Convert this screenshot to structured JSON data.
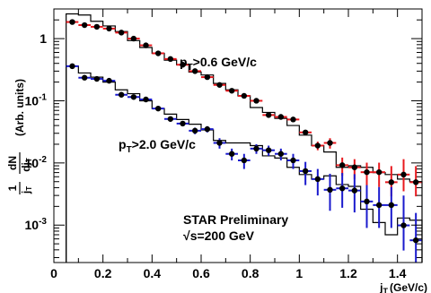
{
  "chart_data": {
    "type": "scatter",
    "title": "",
    "xlabel": "j_T (GeV/c)",
    "xlabel_main": "j",
    "xlabel_sub": "T",
    "xlabel_unit": "(GeV/c)",
    "ylabel": "(1/j_T) dN/dj_T (Arb. units)",
    "ylabel_frac1_num": "1",
    "ylabel_frac1_den": "j",
    "ylabel_frac1_den_sub": "T",
    "ylabel_frac2_num": "dN",
    "ylabel_frac2_den": "dj",
    "ylabel_frac2_den_sub": "T",
    "ylabel_units": "(Arb. units)",
    "xlim": [
      0,
      1.5
    ],
    "ylim": [
      0.00025,
      3
    ],
    "yscale": "log",
    "grid": false,
    "x_ticks": [
      {
        "value": 0,
        "label": "0"
      },
      {
        "value": 0.2,
        "label": "0.2"
      },
      {
        "value": 0.4,
        "label": "0.4"
      },
      {
        "value": 0.6,
        "label": "0.6"
      },
      {
        "value": 0.8,
        "label": "0.8"
      },
      {
        "value": 1.0,
        "label": "1"
      },
      {
        "value": 1.2,
        "label": "1.2"
      },
      {
        "value": 1.4,
        "label": "1.4"
      }
    ],
    "y_ticks": [
      {
        "value": 1,
        "label": "1",
        "base": "",
        "exp": ""
      },
      {
        "value": 0.1,
        "label": "",
        "base": "10",
        "exp": "-1"
      },
      {
        "value": 0.01,
        "label": "",
        "base": "10",
        "exp": "-2"
      },
      {
        "value": 0.001,
        "label": "",
        "base": "10",
        "exp": "-3"
      }
    ],
    "annotations": {
      "high_pt": {
        "p": "p",
        "sub": "T",
        "rest": ">0.6 GeV/c"
      },
      "low_pt": {
        "p": "p",
        "sub": "T",
        "rest": ">2.0 GeV/c"
      },
      "prelim": "STAR Preliminary",
      "energy_sqrt": "√",
      "energy_rest": "s=200 GeV"
    },
    "bin_width": 0.05,
    "series": [
      {
        "key": "data_high",
        "color": "#e8191e",
        "x": [
          0.075,
          0.125,
          0.175,
          0.225,
          0.275,
          0.325,
          0.375,
          0.425,
          0.475,
          0.525,
          0.575,
          0.625,
          0.675,
          0.725,
          0.775,
          0.825,
          0.875,
          0.925,
          0.975,
          1.025,
          1.075,
          1.125,
          1.175,
          1.225,
          1.275,
          1.325,
          1.375,
          1.425,
          1.475
        ],
        "y": [
          1.85,
          1.65,
          1.55,
          1.45,
          1.25,
          1.0,
          0.78,
          0.58,
          0.47,
          0.38,
          0.3,
          0.24,
          0.18,
          0.145,
          0.12,
          0.1,
          0.059,
          0.055,
          0.05,
          0.031,
          0.019,
          0.021,
          0.0092,
          0.0085,
          0.0071,
          0.0071,
          0.0049,
          0.0065,
          0.0049
        ],
        "yerr_lo": [
          0.05,
          0.05,
          0.05,
          0.05,
          0.05,
          0.04,
          0.03,
          0.02,
          0.02,
          0.015,
          0.012,
          0.01,
          0.008,
          0.006,
          0.005,
          0.004,
          0.003,
          0.003,
          0.003,
          0.003,
          0.003,
          0.004,
          0.003,
          0.003,
          0.003,
          0.003,
          0.002,
          0.003,
          0.002
        ],
        "yerr_hi": [
          0.05,
          0.05,
          0.05,
          0.05,
          0.05,
          0.04,
          0.03,
          0.02,
          0.02,
          0.015,
          0.012,
          0.01,
          0.008,
          0.006,
          0.005,
          0.004,
          0.003,
          0.003,
          0.003,
          0.003,
          0.003,
          0.004,
          0.003,
          0.003,
          0.003,
          0.003,
          0.004,
          0.005,
          0.004
        ]
      },
      {
        "key": "data_low",
        "color": "#1a1acd",
        "x": [
          0.075,
          0.125,
          0.175,
          0.225,
          0.275,
          0.325,
          0.375,
          0.425,
          0.475,
          0.525,
          0.575,
          0.625,
          0.675,
          0.725,
          0.775,
          0.825,
          0.875,
          0.925,
          0.975,
          1.025,
          1.075,
          1.125,
          1.175,
          1.225,
          1.275,
          1.325,
          1.375,
          1.425,
          1.475
        ],
        "y": [
          0.36,
          0.235,
          0.225,
          0.21,
          0.125,
          0.115,
          0.105,
          0.075,
          0.051,
          0.043,
          0.033,
          0.035,
          0.021,
          0.014,
          0.011,
          0.017,
          0.016,
          0.014,
          0.011,
          0.0074,
          0.0055,
          0.0037,
          0.0039,
          0.0036,
          0.0024,
          0.0021,
          0.0021,
          0.00099,
          0.00057
        ],
        "yerr_lo": [
          0.015,
          0.012,
          0.012,
          0.01,
          0.008,
          0.008,
          0.007,
          0.006,
          0.005,
          0.004,
          0.004,
          0.004,
          0.004,
          0.003,
          0.003,
          0.003,
          0.003,
          0.003,
          0.003,
          0.003,
          0.0025,
          0.002,
          0.002,
          0.002,
          0.0015,
          0.0012,
          0.0012,
          0.0006,
          0.00035
        ],
        "yerr_hi": [
          0.015,
          0.012,
          0.012,
          0.01,
          0.008,
          0.008,
          0.007,
          0.006,
          0.005,
          0.004,
          0.004,
          0.004,
          0.004,
          0.003,
          0.003,
          0.003,
          0.003,
          0.003,
          0.003,
          0.003,
          0.0025,
          0.003,
          0.003,
          0.003,
          0.002,
          0.002,
          0.002,
          0.002,
          0.001
        ]
      }
    ],
    "histograms": [
      {
        "key": "pythia_high",
        "color": "#000000",
        "edges": [
          0.05,
          0.1,
          0.15,
          0.2,
          0.25,
          0.3,
          0.35,
          0.4,
          0.45,
          0.5,
          0.55,
          0.6,
          0.65,
          0.7,
          0.75,
          0.8,
          0.85,
          0.9,
          0.95,
          1.0,
          1.05,
          1.1,
          1.15,
          1.2,
          1.25,
          1.3,
          1.35,
          1.4,
          1.45,
          1.5
        ],
        "values": [
          2.5,
          2.4,
          1.9,
          1.6,
          1.3,
          0.93,
          0.72,
          0.58,
          0.45,
          0.38,
          0.29,
          0.26,
          0.19,
          0.15,
          0.12,
          0.078,
          0.065,
          0.052,
          0.04,
          0.028,
          0.019,
          0.015,
          0.0085,
          0.009,
          0.0085,
          0.007,
          0.0065,
          0.0055,
          0.005
        ]
      },
      {
        "key": "pythia_low",
        "color": "#000000",
        "edges": [
          0.05,
          0.1,
          0.15,
          0.2,
          0.25,
          0.3,
          0.35,
          0.4,
          0.45,
          0.5,
          0.55,
          0.6,
          0.65,
          0.7,
          0.75,
          0.8,
          0.85,
          0.9,
          0.95,
          1.0,
          1.05,
          1.1,
          1.15,
          1.2,
          1.25,
          1.3,
          1.35,
          1.4,
          1.45,
          1.5
        ],
        "values": [
          0.36,
          0.28,
          0.24,
          0.2,
          0.15,
          0.13,
          0.1,
          0.075,
          0.061,
          0.05,
          0.042,
          0.034,
          0.023,
          0.021,
          0.021,
          0.019,
          0.013,
          0.012,
          0.0085,
          0.0065,
          0.0055,
          0.0062,
          0.0045,
          0.0042,
          0.0018,
          0.0011,
          0.0007,
          0.0013,
          0.0012
        ]
      }
    ]
  }
}
